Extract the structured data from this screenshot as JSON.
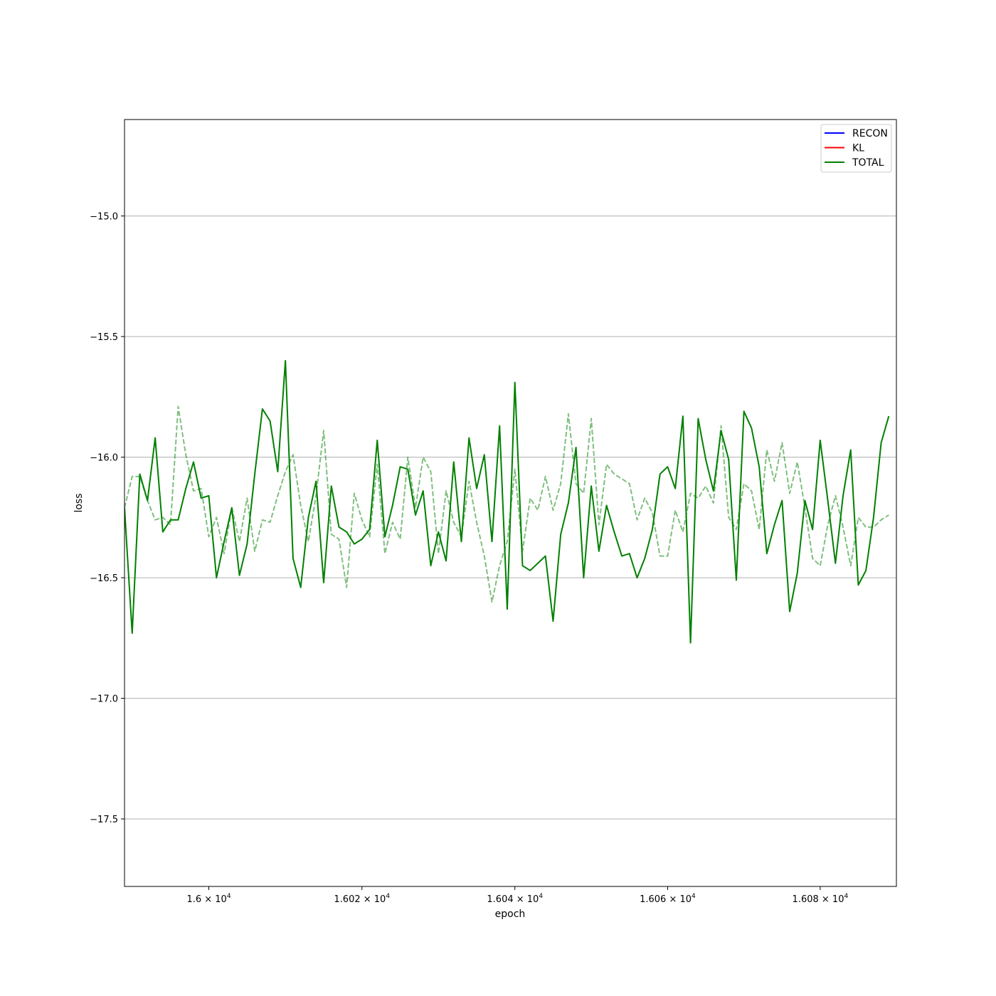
{
  "chart_data": {
    "type": "line",
    "title": "",
    "xlabel": "epoch",
    "ylabel": "loss",
    "xscale": "log",
    "xlim": [
      15989,
      16090
    ],
    "ylim": [
      -17.78,
      -14.6
    ],
    "grid": "y-major",
    "legend_position": "top-right",
    "x_ticks": [
      {
        "value": 16000,
        "mantissa": "1.6",
        "exponent": "4"
      },
      {
        "value": 16020,
        "mantissa": "1.602",
        "exponent": "4"
      },
      {
        "value": 16040,
        "mantissa": "1.604",
        "exponent": "4"
      },
      {
        "value": 16060,
        "mantissa": "1.606",
        "exponent": "4"
      },
      {
        "value": 16080,
        "mantissa": "1.608",
        "exponent": "4"
      }
    ],
    "y_ticks": [
      {
        "value": -15.0,
        "label": "−15.0"
      },
      {
        "value": -15.5,
        "label": "−15.5"
      },
      {
        "value": -16.0,
        "label": "−16.0"
      },
      {
        "value": -16.5,
        "label": "−16.5"
      },
      {
        "value": -17.0,
        "label": "−17.0"
      },
      {
        "value": -17.5,
        "label": "−17.5"
      }
    ],
    "legend": [
      {
        "label": "RECON",
        "color": "#0000ff"
      },
      {
        "label": "KL",
        "color": "#ff0000"
      },
      {
        "label": "TOTAL",
        "color": "#008000"
      }
    ],
    "x_start": 15989,
    "series": [
      {
        "name": "TOTAL",
        "color": "#008000",
        "style": "solid",
        "values": [
          -16.21,
          -16.73,
          -16.07,
          -16.18,
          -15.92,
          -16.31,
          -16.26,
          -16.26,
          -16.13,
          -16.02,
          -16.17,
          -16.16,
          -16.5,
          -16.35,
          -16.21,
          -16.49,
          -16.36,
          -16.07,
          -15.8,
          -15.85,
          -16.06,
          -15.6,
          -16.42,
          -16.54,
          -16.25,
          -16.1,
          -16.52,
          -16.12,
          -16.29,
          -16.31,
          -16.36,
          -16.34,
          -16.3,
          -15.93,
          -16.33,
          -16.2,
          -16.04,
          -16.05,
          -16.24,
          -16.14,
          -16.45,
          -16.31,
          -16.43,
          -16.02,
          -16.35,
          -15.92,
          -16.13,
          -15.99,
          -16.35,
          -15.87,
          -16.63,
          -15.69,
          -16.45,
          -16.47,
          -16.44,
          -16.41,
          -16.68,
          -16.32,
          -16.19,
          -15.96,
          -16.5,
          -16.12,
          -16.39,
          -16.2,
          -16.31,
          -16.41,
          -16.4,
          -16.5,
          -16.42,
          -16.3,
          -16.07,
          -16.04,
          -16.13,
          -15.83,
          -16.77,
          -15.84,
          -16.01,
          -16.14,
          -15.89,
          -16.01,
          -16.51,
          -15.81,
          -15.88,
          -16.04,
          -16.4,
          -16.28,
          -16.18,
          -16.64,
          -16.48,
          -16.18,
          -16.3,
          -15.93,
          -16.18,
          -16.44,
          -16.16,
          -15.97,
          -16.53,
          -16.47,
          -16.25,
          -15.94,
          -15.83
        ]
      },
      {
        "name": "",
        "color": "#008000",
        "style": "dashed",
        "opacity": 0.5,
        "values": [
          -16.21,
          -16.08,
          -16.08,
          -16.18,
          -16.26,
          -16.25,
          -16.28,
          -15.79,
          -15.99,
          -16.14,
          -16.13,
          -16.33,
          -16.25,
          -16.4,
          -16.21,
          -16.35,
          -16.17,
          -16.39,
          -16.26,
          -16.27,
          -16.16,
          -16.06,
          -15.99,
          -16.2,
          -16.35,
          -16.16,
          -15.89,
          -16.32,
          -16.34,
          -16.54,
          -16.15,
          -16.26,
          -16.33,
          -16.03,
          -16.4,
          -16.27,
          -16.34,
          -16.0,
          -16.21,
          -16.0,
          -16.06,
          -16.4,
          -16.14,
          -16.27,
          -16.33,
          -16.1,
          -16.27,
          -16.41,
          -16.6,
          -16.45,
          -16.35,
          -16.05,
          -16.39,
          -16.17,
          -16.22,
          -16.08,
          -16.22,
          -16.11,
          -15.82,
          -16.11,
          -16.15,
          -15.84,
          -16.28,
          -16.03,
          -16.07,
          -16.09,
          -16.11,
          -16.26,
          -16.17,
          -16.23,
          -16.41,
          -16.41,
          -16.22,
          -16.31,
          -16.15,
          -16.17,
          -16.12,
          -16.19,
          -15.87,
          -16.25,
          -16.3,
          -16.11,
          -16.14,
          -16.3,
          -15.97,
          -16.1,
          -15.94,
          -16.15,
          -16.02,
          -16.21,
          -16.42,
          -16.45,
          -16.28,
          -16.16,
          -16.29,
          -16.45,
          -16.25,
          -16.29,
          -16.29,
          -16.26,
          -16.24
        ]
      }
    ]
  }
}
